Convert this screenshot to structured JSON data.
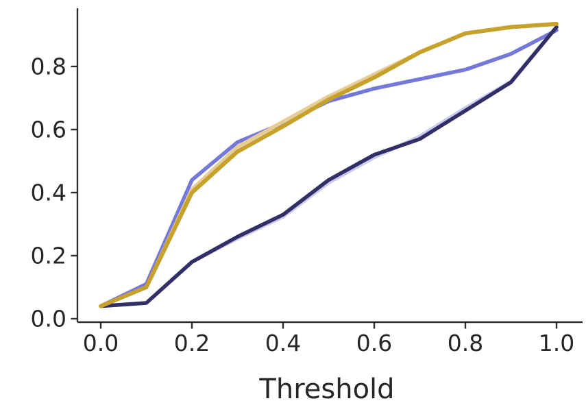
{
  "figure": {
    "background": "#ffffff",
    "text_color": "#262626",
    "axis_color": "#2e2e2e"
  },
  "chart_data": {
    "type": "line",
    "title": "",
    "xlabel": "Threshold",
    "ylabel": "",
    "grid": false,
    "legend": "none",
    "xlim": [
      0.0,
      1.0
    ],
    "ylim": [
      0.0,
      1.0
    ],
    "x_ticks": [
      {
        "value": 0.0,
        "label": "0.0"
      },
      {
        "value": 0.2,
        "label": "0.2"
      },
      {
        "value": 0.4,
        "label": "0.4"
      },
      {
        "value": 0.6,
        "label": "0.6"
      },
      {
        "value": 0.8,
        "label": "0.8"
      },
      {
        "value": 1.0,
        "label": "1.0"
      }
    ],
    "y_ticks": [
      {
        "value": 0.0,
        "label": "0.0"
      },
      {
        "value": 0.2,
        "label": "0.2"
      },
      {
        "value": 0.4,
        "label": "0.4"
      },
      {
        "value": 0.6,
        "label": "0.6"
      },
      {
        "value": 0.8,
        "label": "0.8"
      }
    ],
    "x": [
      0.0,
      0.1,
      0.2,
      0.3,
      0.4,
      0.5,
      0.6,
      0.7,
      0.8,
      0.9,
      1.0
    ],
    "series": [
      {
        "name": "lavender-line",
        "color": "#c9caec",
        "width": 5.5,
        "values": [
          0.04,
          0.05,
          0.18,
          0.255,
          0.324,
          0.432,
          0.512,
          0.578,
          0.668,
          0.752,
          0.925
        ]
      },
      {
        "name": "periwinkle-line",
        "color": "#7478d8",
        "width": 5.5,
        "values": [
          0.04,
          0.11,
          0.44,
          0.56,
          0.62,
          0.69,
          0.73,
          0.76,
          0.79,
          0.84,
          0.915
        ]
      },
      {
        "name": "wheat-line",
        "color": "#e6cc96",
        "width": 5.5,
        "values": [
          0.04,
          0.1,
          0.41,
          0.545,
          0.625,
          0.705,
          0.775,
          0.845,
          0.905,
          0.925,
          0.935
        ]
      },
      {
        "name": "navy-line",
        "color": "#322f66",
        "width": 5.5,
        "values": [
          0.04,
          0.05,
          0.18,
          0.26,
          0.33,
          0.44,
          0.52,
          0.57,
          0.66,
          0.75,
          0.925
        ]
      },
      {
        "name": "gold-line",
        "color": "#c6a22c",
        "width": 6.0,
        "values": [
          0.04,
          0.1,
          0.4,
          0.53,
          0.61,
          0.695,
          0.765,
          0.845,
          0.905,
          0.925,
          0.935
        ]
      }
    ]
  }
}
